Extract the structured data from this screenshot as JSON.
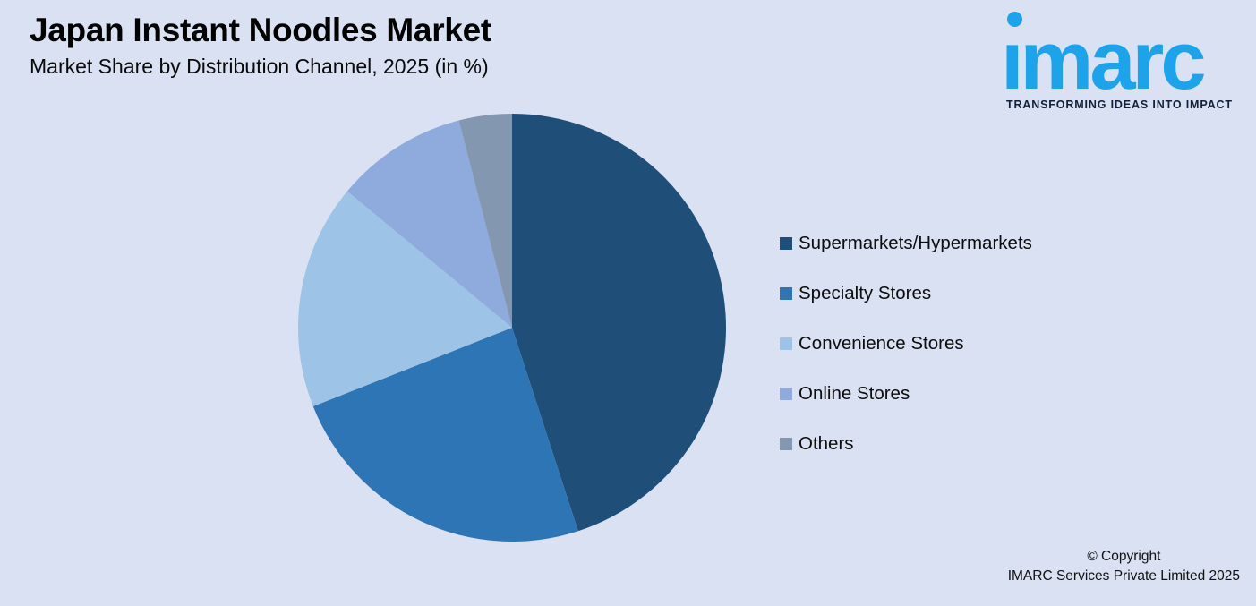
{
  "page": {
    "background_color": "#d9e1f2"
  },
  "header": {
    "title": "Japan Instant Noodles Market",
    "subtitle": "Market Share by Distribution Channel, 2025 (in %)"
  },
  "logo": {
    "brand": "imarc",
    "brand_display": "ımarc",
    "tagline": "TRANSFORMING IDEAS INTO IMPACT",
    "brand_color": "#1ba4ec",
    "tagline_color": "#13203a"
  },
  "chart_data": {
    "type": "pie",
    "title": "Japan Instant Noodles Market",
    "subtitle": "Market Share by Distribution Channel, 2025 (in %)",
    "unit": "%",
    "categories": [
      "Supermarkets/Hypermarkets",
      "Specialty Stores",
      "Convenience Stores",
      "Online Stores",
      "Others"
    ],
    "values": [
      45,
      24,
      17,
      10,
      4
    ],
    "colors": [
      "#1f4e79",
      "#2e75b6",
      "#9dc3e6",
      "#8faadc",
      "#8497b0"
    ],
    "start_angle_deg": 0,
    "direction": "clockwise",
    "legend_position": "right",
    "data_labels_shown": false
  },
  "footer": {
    "line1": "© Copyright",
    "line2": "IMARC Services Private Limited 2025"
  }
}
